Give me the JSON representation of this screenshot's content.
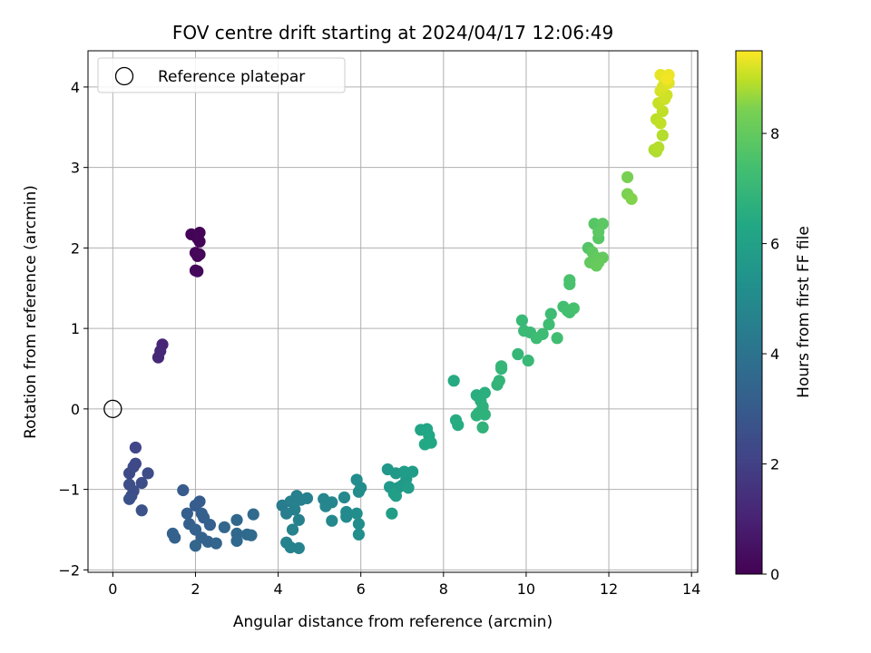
{
  "chart_data": {
    "type": "scatter",
    "title": "FOV centre drift starting at 2024/04/17 12:06:49",
    "xlabel": "Angular distance from reference (arcmin)",
    "ylabel": "Rotation from reference (arcmin)",
    "xlim": [
      -0.6,
      14.15
    ],
    "ylim": [
      -2.03,
      4.45
    ],
    "xticks": [
      0,
      2,
      4,
      6,
      8,
      10,
      12,
      14
    ],
    "yticks": [
      -2,
      -1,
      0,
      1,
      2,
      3,
      4
    ],
    "grid": true,
    "legend": {
      "position": "top-left",
      "entries": [
        "Reference platepar"
      ]
    },
    "reference_point": {
      "x": 0,
      "y": 0
    },
    "colorbar": {
      "label": "Hours from first FF file",
      "range": [
        0,
        9.5
      ],
      "ticks": [
        0,
        2,
        4,
        6,
        8
      ],
      "colormap": "viridis"
    },
    "points": [
      [
        1.9,
        2.17,
        0.05
      ],
      [
        2.1,
        2.19,
        0.08
      ],
      [
        2.05,
        2.12,
        0.1
      ],
      [
        2.1,
        2.08,
        0.12
      ],
      [
        2.0,
        1.94,
        0.15
      ],
      [
        2.1,
        1.92,
        0.18
      ],
      [
        2.05,
        1.9,
        0.2
      ],
      [
        2.0,
        1.72,
        0.22
      ],
      [
        2.05,
        1.71,
        0.25
      ],
      [
        1.2,
        0.8,
        1.1
      ],
      [
        1.15,
        0.72,
        1.15
      ],
      [
        1.1,
        0.64,
        1.2
      ],
      [
        0.55,
        -0.48,
        2.2
      ],
      [
        0.55,
        -0.68,
        2.25
      ],
      [
        0.5,
        -0.72,
        2.3
      ],
      [
        0.4,
        -0.8,
        2.35
      ],
      [
        0.85,
        -0.8,
        2.4
      ],
      [
        0.7,
        -0.92,
        2.45
      ],
      [
        0.4,
        -0.94,
        2.5
      ],
      [
        0.5,
        -1.02,
        2.5
      ],
      [
        0.45,
        -1.08,
        2.55
      ],
      [
        0.4,
        -1.12,
        2.6
      ],
      [
        0.7,
        -1.26,
        2.65
      ],
      [
        1.7,
        -1.01,
        3.0
      ],
      [
        2.1,
        -1.15,
        3.05
      ],
      [
        2.0,
        -1.2,
        3.1
      ],
      [
        1.8,
        -1.3,
        3.15
      ],
      [
        2.15,
        -1.3,
        3.15
      ],
      [
        2.2,
        -1.35,
        3.2
      ],
      [
        1.85,
        -1.43,
        3.2
      ],
      [
        2.0,
        -1.5,
        3.25
      ],
      [
        2.35,
        -1.44,
        3.25
      ],
      [
        1.45,
        -1.55,
        3.3
      ],
      [
        1.5,
        -1.6,
        3.3
      ],
      [
        2.15,
        -1.6,
        3.35
      ],
      [
        2.3,
        -1.65,
        3.35
      ],
      [
        2.5,
        -1.67,
        3.4
      ],
      [
        2.0,
        -1.7,
        3.4
      ],
      [
        2.7,
        -1.47,
        3.45
      ],
      [
        3.0,
        -1.38,
        3.5
      ],
      [
        3.0,
        -1.55,
        3.55
      ],
      [
        3.0,
        -1.64,
        3.6
      ],
      [
        3.25,
        -1.56,
        3.6
      ],
      [
        3.35,
        -1.57,
        3.65
      ],
      [
        3.4,
        -1.31,
        3.65
      ],
      [
        4.1,
        -1.2,
        4.4
      ],
      [
        4.2,
        -1.3,
        4.45
      ],
      [
        4.3,
        -1.15,
        4.5
      ],
      [
        4.45,
        -1.08,
        4.5
      ],
      [
        4.55,
        -1.13,
        4.55
      ],
      [
        4.7,
        -1.11,
        4.55
      ],
      [
        4.4,
        -1.25,
        4.6
      ],
      [
        4.5,
        -1.38,
        4.6
      ],
      [
        4.35,
        -1.5,
        4.65
      ],
      [
        4.2,
        -1.66,
        4.65
      ],
      [
        4.3,
        -1.72,
        4.7
      ],
      [
        4.5,
        -1.73,
        4.7
      ],
      [
        5.1,
        -1.12,
        4.8
      ],
      [
        5.3,
        -1.16,
        4.85
      ],
      [
        5.15,
        -1.21,
        4.85
      ],
      [
        5.3,
        -1.39,
        4.9
      ],
      [
        5.6,
        -1.1,
        4.95
      ],
      [
        5.65,
        -1.28,
        5.0
      ],
      [
        5.65,
        -1.34,
        5.0
      ],
      [
        5.9,
        -0.88,
        5.05
      ],
      [
        6.0,
        -0.98,
        5.1
      ],
      [
        5.95,
        -1.03,
        5.1
      ],
      [
        5.9,
        -1.3,
        5.15
      ],
      [
        5.95,
        -1.43,
        5.15
      ],
      [
        5.95,
        -1.56,
        5.2
      ],
      [
        6.65,
        -0.75,
        5.6
      ],
      [
        6.85,
        -0.8,
        5.65
      ],
      [
        6.7,
        -0.97,
        5.7
      ],
      [
        6.9,
        -0.98,
        5.7
      ],
      [
        7.0,
        -0.95,
        5.75
      ],
      [
        7.1,
        -0.87,
        5.75
      ],
      [
        7.05,
        -0.78,
        5.8
      ],
      [
        7.25,
        -0.78,
        5.8
      ],
      [
        7.15,
        -0.98,
        5.85
      ],
      [
        6.8,
        -1.05,
        5.85
      ],
      [
        6.85,
        -1.08,
        5.9
      ],
      [
        6.75,
        -1.3,
        5.9
      ],
      [
        7.45,
        -0.26,
        6.2
      ],
      [
        7.6,
        -0.25,
        6.25
      ],
      [
        7.65,
        -0.33,
        6.3
      ],
      [
        7.7,
        -0.42,
        6.3
      ],
      [
        7.55,
        -0.44,
        6.35
      ],
      [
        8.25,
        0.35,
        6.45
      ],
      [
        8.3,
        -0.14,
        6.5
      ],
      [
        8.35,
        -0.2,
        6.5
      ],
      [
        8.8,
        0.17,
        6.6
      ],
      [
        8.9,
        0.1,
        6.65
      ],
      [
        9.0,
        0.2,
        6.65
      ],
      [
        8.95,
        0.03,
        6.7
      ],
      [
        8.85,
        -0.05,
        6.7
      ],
      [
        9.0,
        -0.07,
        6.75
      ],
      [
        8.8,
        -0.08,
        6.75
      ],
      [
        8.95,
        -0.23,
        6.8
      ],
      [
        9.3,
        0.3,
        6.85
      ],
      [
        9.35,
        0.35,
        6.9
      ],
      [
        9.4,
        0.5,
        6.9
      ],
      [
        9.4,
        0.53,
        6.95
      ],
      [
        9.8,
        0.68,
        7.0
      ],
      [
        10.05,
        0.6,
        7.05
      ],
      [
        9.9,
        1.1,
        7.05
      ],
      [
        9.95,
        0.97,
        7.1
      ],
      [
        10.1,
        0.95,
        7.15
      ],
      [
        10.25,
        0.88,
        7.2
      ],
      [
        10.4,
        0.93,
        7.2
      ],
      [
        10.55,
        1.05,
        7.25
      ],
      [
        10.6,
        1.18,
        7.25
      ],
      [
        10.75,
        0.88,
        7.3
      ],
      [
        10.9,
        1.27,
        7.35
      ],
      [
        11.0,
        1.22,
        7.4
      ],
      [
        11.05,
        1.2,
        7.4
      ],
      [
        11.15,
        1.25,
        7.45
      ],
      [
        11.05,
        1.55,
        7.5
      ],
      [
        11.05,
        1.6,
        7.5
      ],
      [
        11.5,
        2.0,
        7.7
      ],
      [
        11.65,
        2.3,
        7.75
      ],
      [
        11.75,
        2.12,
        7.8
      ],
      [
        11.85,
        2.3,
        7.85
      ],
      [
        11.75,
        2.2,
        7.85
      ],
      [
        11.6,
        1.95,
        7.9
      ],
      [
        11.7,
        1.88,
        7.95
      ],
      [
        11.85,
        1.88,
        8.0
      ],
      [
        11.55,
        1.82,
        8.0
      ],
      [
        11.7,
        1.78,
        8.05
      ],
      [
        11.75,
        1.82,
        8.05
      ],
      [
        12.45,
        2.88,
        8.4
      ],
      [
        12.45,
        2.67,
        8.45
      ],
      [
        12.55,
        2.61,
        8.5
      ],
      [
        13.1,
        3.22,
        8.85
      ],
      [
        13.15,
        3.2,
        8.85
      ],
      [
        13.2,
        3.25,
        8.9
      ],
      [
        13.3,
        3.4,
        8.9
      ],
      [
        13.15,
        3.6,
        8.95
      ],
      [
        13.25,
        3.55,
        9.0
      ],
      [
        13.3,
        3.7,
        9.0
      ],
      [
        13.2,
        3.8,
        9.05
      ],
      [
        13.35,
        3.85,
        9.1
      ],
      [
        13.4,
        3.9,
        9.1
      ],
      [
        13.25,
        3.95,
        9.15
      ],
      [
        13.3,
        4.0,
        9.2
      ],
      [
        13.35,
        4.05,
        9.2
      ],
      [
        13.45,
        4.05,
        9.25
      ],
      [
        13.25,
        4.15,
        9.3
      ],
      [
        13.45,
        4.15,
        9.35
      ],
      [
        13.4,
        4.1,
        9.4
      ]
    ]
  }
}
